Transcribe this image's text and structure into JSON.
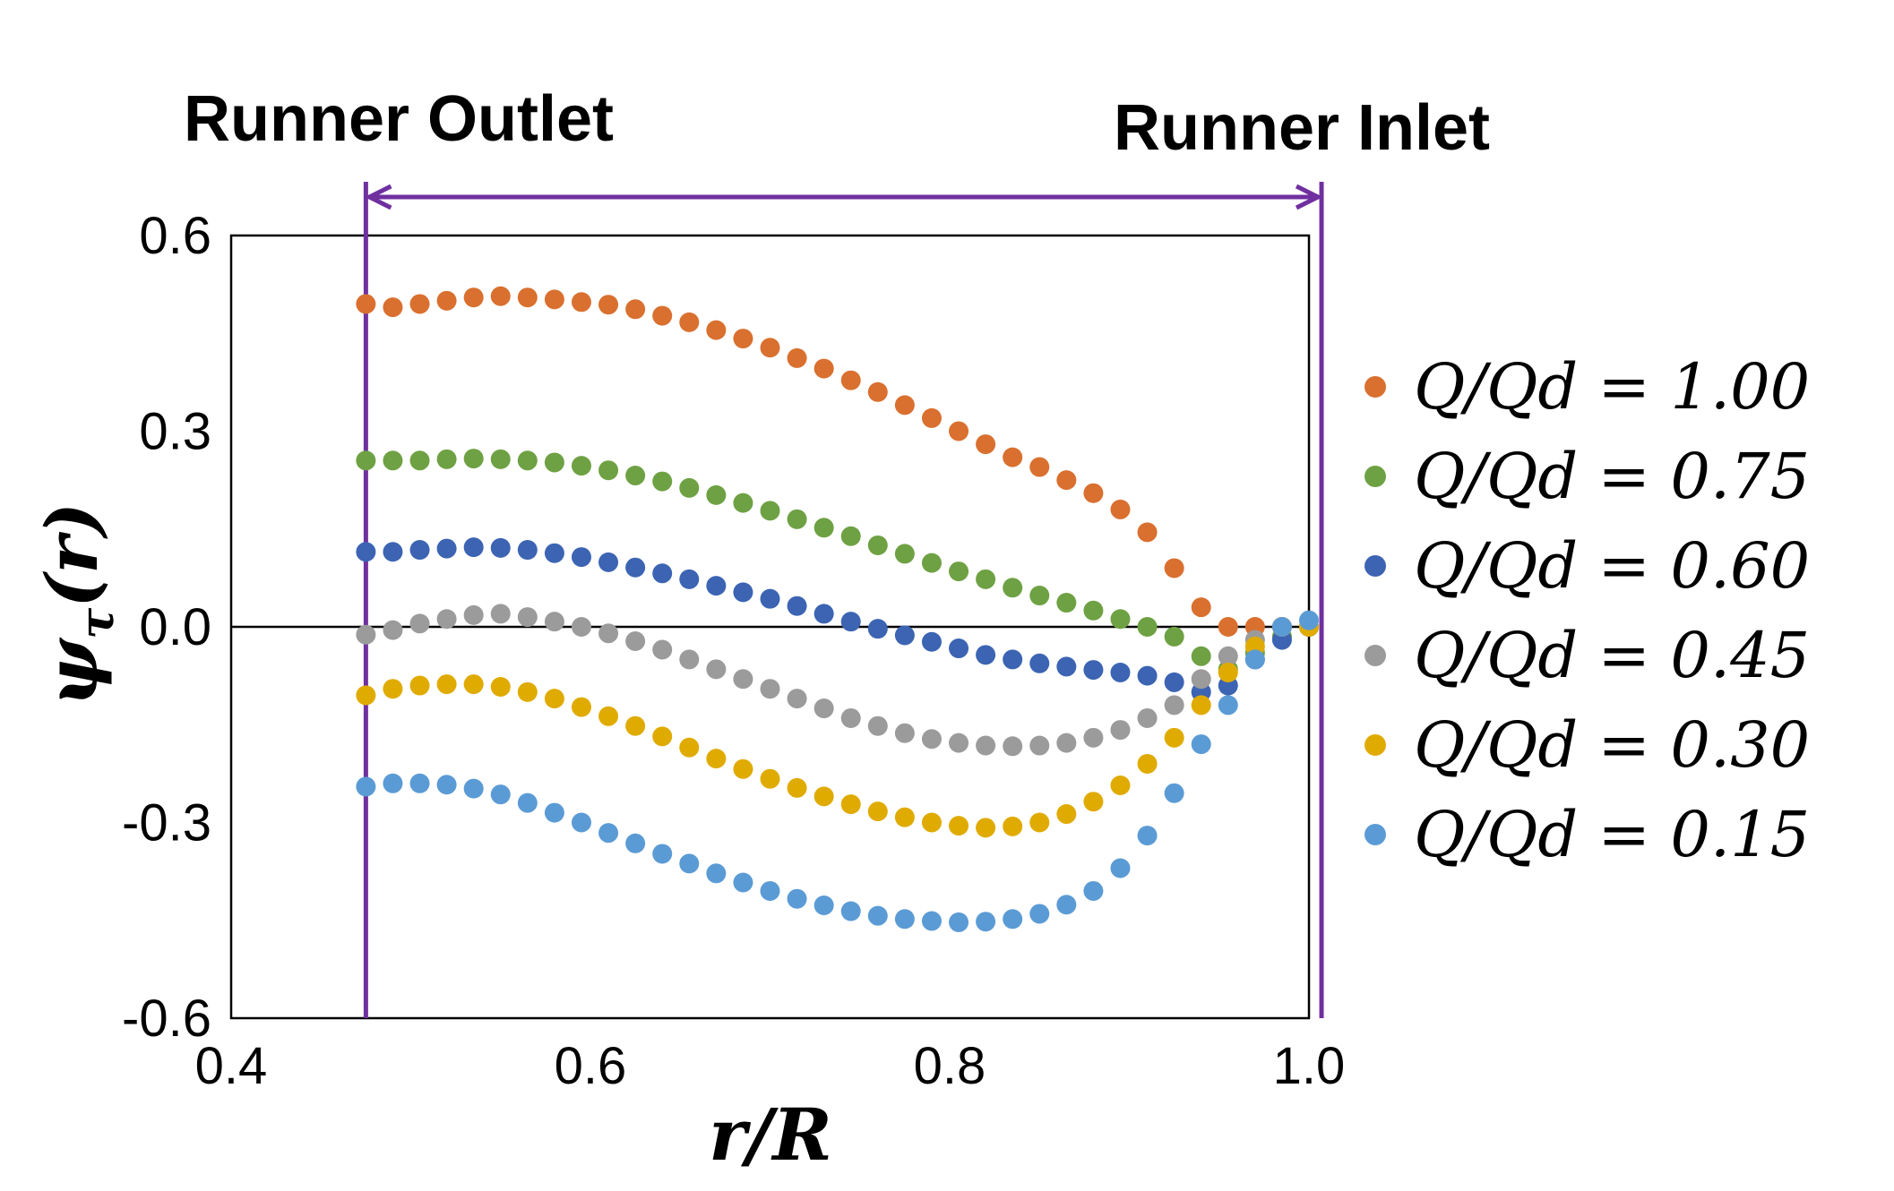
{
  "chart_data": {
    "type": "scatter",
    "xlabel": "r/R",
    "ylabel": "ψτ(r)",
    "xlim": [
      0.4,
      1.0
    ],
    "ylim": [
      -0.6,
      0.6
    ],
    "x_ticks": [
      "0.4",
      "0.6",
      "0.8",
      "1.0"
    ],
    "y_ticks": [
      "0.6",
      "0.3",
      "0.0",
      "-0.3",
      "-0.6"
    ],
    "grid": false,
    "legend_position": "right",
    "annotations": {
      "outlet_label": "Runner Outlet",
      "inlet_label": "Runner Inlet",
      "outlet_r": 0.475,
      "inlet_r": 1.007
    },
    "x": [
      0.475,
      0.49,
      0.505,
      0.52,
      0.535,
      0.55,
      0.565,
      0.58,
      0.595,
      0.61,
      0.625,
      0.64,
      0.655,
      0.67,
      0.685,
      0.7,
      0.715,
      0.73,
      0.745,
      0.76,
      0.775,
      0.79,
      0.805,
      0.82,
      0.835,
      0.85,
      0.865,
      0.88,
      0.895,
      0.91,
      0.925,
      0.94,
      0.955,
      0.97,
      0.985,
      1.0
    ],
    "series": [
      {
        "name": "Q/Qd = 1.00",
        "color": "#d9702f",
        "values": [
          0.495,
          0.49,
          0.495,
          0.5,
          0.505,
          0.507,
          0.505,
          0.502,
          0.498,
          0.494,
          0.487,
          0.477,
          0.467,
          0.455,
          0.442,
          0.428,
          0.412,
          0.396,
          0.378,
          0.36,
          0.34,
          0.32,
          0.3,
          0.28,
          0.26,
          0.245,
          0.225,
          0.205,
          0.18,
          0.145,
          0.09,
          0.03,
          0.0,
          0.0,
          0.0,
          0.0
        ]
      },
      {
        "name": "Q/Qd = 0.75",
        "color": "#6ea143",
        "values": [
          0.255,
          0.255,
          0.255,
          0.257,
          0.258,
          0.257,
          0.255,
          0.252,
          0.247,
          0.24,
          0.232,
          0.223,
          0.213,
          0.202,
          0.19,
          0.178,
          0.165,
          0.152,
          0.139,
          0.125,
          0.112,
          0.098,
          0.085,
          0.073,
          0.06,
          0.048,
          0.037,
          0.025,
          0.012,
          0.0,
          -0.015,
          -0.045,
          -0.065,
          -0.04,
          -0.015,
          0.0
        ]
      },
      {
        "name": "Q/Qd = 0.60",
        "color": "#3c64b3",
        "values": [
          0.115,
          0.115,
          0.118,
          0.12,
          0.122,
          0.121,
          0.118,
          0.113,
          0.107,
          0.099,
          0.091,
          0.082,
          0.073,
          0.063,
          0.053,
          0.043,
          0.032,
          0.02,
          0.008,
          -0.003,
          -0.013,
          -0.023,
          -0.033,
          -0.043,
          -0.05,
          -0.056,
          -0.061,
          -0.066,
          -0.07,
          -0.075,
          -0.085,
          -0.1,
          -0.09,
          -0.05,
          -0.02,
          0.0
        ]
      },
      {
        "name": "Q/Qd = 0.45",
        "color": "#9b9b9b",
        "values": [
          -0.012,
          -0.005,
          0.005,
          0.012,
          0.018,
          0.02,
          0.015,
          0.008,
          0.0,
          -0.01,
          -0.022,
          -0.035,
          -0.05,
          -0.065,
          -0.08,
          -0.095,
          -0.11,
          -0.125,
          -0.14,
          -0.152,
          -0.163,
          -0.172,
          -0.178,
          -0.182,
          -0.183,
          -0.182,
          -0.178,
          -0.17,
          -0.158,
          -0.14,
          -0.12,
          -0.08,
          -0.045,
          -0.02,
          0.0,
          0.0
        ]
      },
      {
        "name": "Q/Qd = 0.30",
        "color": "#e0ab00",
        "values": [
          -0.105,
          -0.095,
          -0.09,
          -0.088,
          -0.088,
          -0.092,
          -0.1,
          -0.11,
          -0.123,
          -0.137,
          -0.152,
          -0.168,
          -0.185,
          -0.202,
          -0.218,
          -0.233,
          -0.247,
          -0.26,
          -0.272,
          -0.283,
          -0.292,
          -0.3,
          -0.305,
          -0.308,
          -0.306,
          -0.3,
          -0.287,
          -0.268,
          -0.243,
          -0.21,
          -0.17,
          -0.12,
          -0.07,
          -0.03,
          0.0,
          0.0
        ]
      },
      {
        "name": "Q/Qd = 0.15",
        "color": "#5b9bd5",
        "values": [
          -0.245,
          -0.24,
          -0.24,
          -0.242,
          -0.248,
          -0.257,
          -0.27,
          -0.285,
          -0.3,
          -0.316,
          -0.332,
          -0.348,
          -0.363,
          -0.378,
          -0.392,
          -0.405,
          -0.417,
          -0.427,
          -0.436,
          -0.443,
          -0.448,
          -0.451,
          -0.453,
          -0.452,
          -0.448,
          -0.44,
          -0.426,
          -0.405,
          -0.37,
          -0.32,
          -0.255,
          -0.18,
          -0.12,
          -0.05,
          0.0,
          0.01
        ]
      }
    ]
  }
}
